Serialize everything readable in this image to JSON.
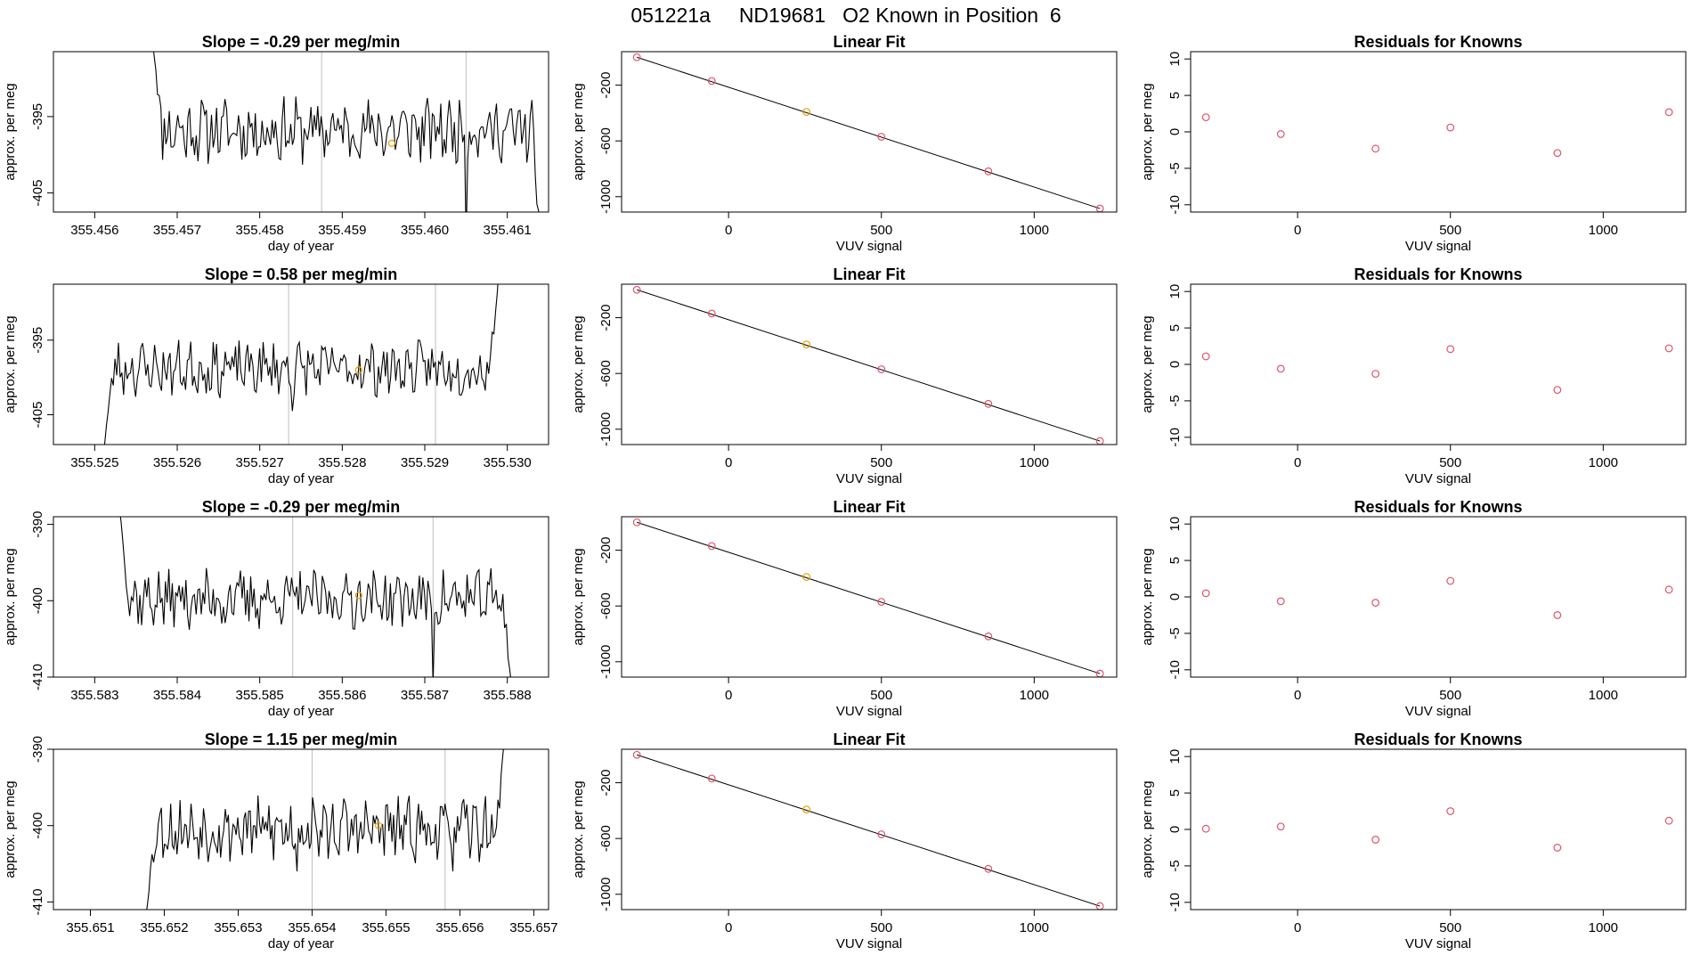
{
  "page_title": "051221a     ND19681   O2 Known in Position  6",
  "colors": {
    "trace": "#000000",
    "marker": "#e69f00",
    "residual": "#df536b",
    "guide": "#bebebe"
  },
  "chart_data": [
    {
      "row": 1,
      "panels": [
        {
          "type": "line",
          "title": "Slope =  -0.29  per meg/min",
          "xlabel": "day of year",
          "ylabel": "approx. per meg",
          "xlim": [
            355.4555,
            355.4615
          ],
          "ylim": [
            -407.5,
            -386.5
          ],
          "xticks": [
            "355.456",
            "355.457",
            "355.458",
            "355.459",
            "355.460",
            "355.461"
          ],
          "yticks": [
            "-395",
            "-405"
          ],
          "vlines": [
            355.45875,
            355.4605
          ],
          "marker": {
            "x": 355.4596,
            "y": -398.5
          },
          "trace": {
            "x_start": 355.4567,
            "x_end": 355.4614,
            "base": -396.8,
            "amplitude": 3.5,
            "seed": 11,
            "start_y": -385,
            "end_y": -410,
            "spikes": [
              {
                "x": 355.4605,
                "y": -411
              }
            ]
          }
        },
        {
          "type": "scatter",
          "title": "Linear Fit",
          "xlabel": "VUV signal",
          "ylabel": "approx. per meg",
          "xlim": [
            -350,
            1270
          ],
          "ylim": [
            -1110,
            40
          ],
          "xticks": [
            0,
            500,
            1000
          ],
          "yticks": [
            -200,
            -600,
            -1000
          ],
          "fit_line": {
            "x": [
              -300,
              1215
            ],
            "y": [
              0,
              -1085
            ]
          },
          "points": [
            {
              "x": -300,
              "y": 0
            },
            {
              "x": -55,
              "y": -170
            },
            {
              "x": 255,
              "y": -392
            },
            {
              "x": 500,
              "y": -570
            },
            {
              "x": 850,
              "y": -818
            },
            {
              "x": 1215,
              "y": -1085
            }
          ],
          "highlight_index": 2
        },
        {
          "type": "scatter",
          "title": "Residuals for Knowns",
          "xlabel": "VUV signal",
          "ylabel": "approx. per meg",
          "xlim": [
            -350,
            1270
          ],
          "ylim": [
            -11,
            11
          ],
          "xticks": [
            0,
            500,
            1000
          ],
          "yticks": [
            10,
            5,
            0,
            -5,
            -10
          ],
          "points": [
            {
              "x": -300,
              "y": 2.0
            },
            {
              "x": -55,
              "y": -0.3
            },
            {
              "x": 255,
              "y": -2.3
            },
            {
              "x": 500,
              "y": 0.6
            },
            {
              "x": 850,
              "y": -2.9
            },
            {
              "x": 1215,
              "y": 2.7
            }
          ]
        }
      ]
    },
    {
      "row": 2,
      "panels": [
        {
          "type": "line",
          "title": "Slope =  0.58  per meg/min",
          "xlabel": "day of year",
          "ylabel": "approx. per meg",
          "xlim": [
            355.5245,
            355.5305
          ],
          "ylim": [
            -409,
            -387.5
          ],
          "xticks": [
            "355.525",
            "355.526",
            "355.527",
            "355.528",
            "355.529",
            "355.530"
          ],
          "yticks": [
            "-395",
            "-405"
          ],
          "vlines": [
            355.52735,
            355.52913
          ],
          "marker": {
            "x": 355.5282,
            "y": -399
          },
          "trace": {
            "x_start": 355.5251,
            "x_end": 355.5299,
            "base": -398.8,
            "amplitude": 3.0,
            "seed": 23,
            "start_y": -411,
            "end_y": -385,
            "spikes": [
              {
                "x": 355.5274,
                "y": -404.5
              }
            ]
          }
        },
        {
          "type": "scatter",
          "title": "Linear Fit",
          "xlabel": "VUV signal",
          "ylabel": "approx. per meg",
          "xlim": [
            -350,
            1270
          ],
          "ylim": [
            -1110,
            40
          ],
          "xticks": [
            0,
            500,
            1000
          ],
          "yticks": [
            -200,
            -600,
            -1000
          ],
          "fit_line": {
            "x": [
              -300,
              1215
            ],
            "y": [
              0,
              -1085
            ]
          },
          "points": [
            {
              "x": -300,
              "y": 0
            },
            {
              "x": -55,
              "y": -170
            },
            {
              "x": 255,
              "y": -392
            },
            {
              "x": 500,
              "y": -570
            },
            {
              "x": 850,
              "y": -818
            },
            {
              "x": 1215,
              "y": -1085
            }
          ],
          "highlight_index": 2
        },
        {
          "type": "scatter",
          "title": "Residuals for Knowns",
          "xlabel": "VUV signal",
          "ylabel": "approx. per meg",
          "xlim": [
            -350,
            1270
          ],
          "ylim": [
            -11,
            11
          ],
          "xticks": [
            0,
            500,
            1000
          ],
          "yticks": [
            10,
            5,
            0,
            -5,
            -10
          ],
          "points": [
            {
              "x": -300,
              "y": 1.1
            },
            {
              "x": -55,
              "y": -0.6
            },
            {
              "x": 255,
              "y": -1.3
            },
            {
              "x": 500,
              "y": 2.1
            },
            {
              "x": 850,
              "y": -3.5
            },
            {
              "x": 1215,
              "y": 2.2
            }
          ]
        }
      ]
    },
    {
      "row": 3,
      "panels": [
        {
          "type": "line",
          "title": "Slope =  -0.29  per meg/min",
          "xlabel": "day of year",
          "ylabel": "approx. per meg",
          "xlim": [
            355.5825,
            355.5885
          ],
          "ylim": [
            -410,
            -389
          ],
          "xticks": [
            "355.583",
            "355.584",
            "355.585",
            "355.586",
            "355.587",
            "355.588"
          ],
          "yticks": [
            "-390",
            "-400",
            "-410"
          ],
          "vlines": [
            355.5854,
            355.5871
          ],
          "marker": {
            "x": 355.5862,
            "y": -399.3
          },
          "trace": {
            "x_start": 355.5833,
            "x_end": 355.58805,
            "base": -399.8,
            "amplitude": 3.2,
            "seed": 37,
            "start_y": -388,
            "end_y": -411,
            "spikes": [
              {
                "x": 355.5871,
                "y": -411
              }
            ]
          }
        },
        {
          "type": "scatter",
          "title": "Linear Fit",
          "xlabel": "VUV signal",
          "ylabel": "approx. per meg",
          "xlim": [
            -350,
            1270
          ],
          "ylim": [
            -1110,
            40
          ],
          "xticks": [
            0,
            500,
            1000
          ],
          "yticks": [
            -200,
            -600,
            -1000
          ],
          "fit_line": {
            "x": [
              -300,
              1215
            ],
            "y": [
              0,
              -1085
            ]
          },
          "points": [
            {
              "x": -300,
              "y": 0
            },
            {
              "x": -55,
              "y": -170
            },
            {
              "x": 255,
              "y": -392
            },
            {
              "x": 500,
              "y": -570
            },
            {
              "x": 850,
              "y": -818
            },
            {
              "x": 1215,
              "y": -1085
            }
          ],
          "highlight_index": 2
        },
        {
          "type": "scatter",
          "title": "Residuals for Knowns",
          "xlabel": "VUV signal",
          "ylabel": "approx. per meg",
          "xlim": [
            -350,
            1270
          ],
          "ylim": [
            -11,
            11
          ],
          "xticks": [
            0,
            500,
            1000
          ],
          "yticks": [
            10,
            5,
            0,
            -5,
            -10
          ],
          "points": [
            {
              "x": -300,
              "y": 0.5
            },
            {
              "x": -55,
              "y": -0.6
            },
            {
              "x": 255,
              "y": -0.8
            },
            {
              "x": 500,
              "y": 2.2
            },
            {
              "x": 850,
              "y": -2.5
            },
            {
              "x": 1215,
              "y": 1.0
            }
          ]
        }
      ]
    },
    {
      "row": 4,
      "panels": [
        {
          "type": "line",
          "title": "Slope =  1.15  per meg/min",
          "xlabel": "day of year",
          "ylabel": "approx. per meg",
          "xlim": [
            355.6505,
            355.6572
          ],
          "ylim": [
            -411,
            -390
          ],
          "xticks": [
            "355.651",
            "355.652",
            "355.653",
            "355.654",
            "355.655",
            "355.656",
            "355.657"
          ],
          "yticks": [
            "-390",
            "-400",
            "-410"
          ],
          "vlines": [
            355.654,
            355.6558
          ],
          "marker": {
            "x": 355.6549,
            "y": -400
          },
          "trace": {
            "x_start": 355.65175,
            "x_end": 355.6566,
            "base": -400.5,
            "amplitude": 3.4,
            "seed": 53,
            "start_y": -412,
            "end_y": -389,
            "spikes": [
              {
                "x": 355.6538,
                "y": -406
              },
              {
                "x": 355.6559,
                "y": -406
              }
            ]
          }
        },
        {
          "type": "scatter",
          "title": "Linear Fit",
          "xlabel": "VUV signal",
          "ylabel": "approx. per meg",
          "xlim": [
            -350,
            1270
          ],
          "ylim": [
            -1110,
            40
          ],
          "xticks": [
            0,
            500,
            1000
          ],
          "yticks": [
            -200,
            -600,
            -1000
          ],
          "fit_line": {
            "x": [
              -300,
              1215
            ],
            "y": [
              0,
              -1085
            ]
          },
          "points": [
            {
              "x": -300,
              "y": 0
            },
            {
              "x": -55,
              "y": -170
            },
            {
              "x": 255,
              "y": -392
            },
            {
              "x": 500,
              "y": -570
            },
            {
              "x": 850,
              "y": -818
            },
            {
              "x": 1215,
              "y": -1085
            }
          ],
          "highlight_index": 2
        },
        {
          "type": "scatter",
          "title": "Residuals for Knowns",
          "xlabel": "VUV signal",
          "ylabel": "approx. per meg",
          "xlim": [
            -350,
            1270
          ],
          "ylim": [
            -11,
            11
          ],
          "xticks": [
            0,
            500,
            1000
          ],
          "yticks": [
            10,
            5,
            0,
            -5,
            -10
          ],
          "points": [
            {
              "x": -300,
              "y": 0.1
            },
            {
              "x": -55,
              "y": 0.4
            },
            {
              "x": 255,
              "y": -1.4
            },
            {
              "x": 500,
              "y": 2.5
            },
            {
              "x": 850,
              "y": -2.5
            },
            {
              "x": 1215,
              "y": 1.2
            }
          ]
        }
      ]
    }
  ]
}
